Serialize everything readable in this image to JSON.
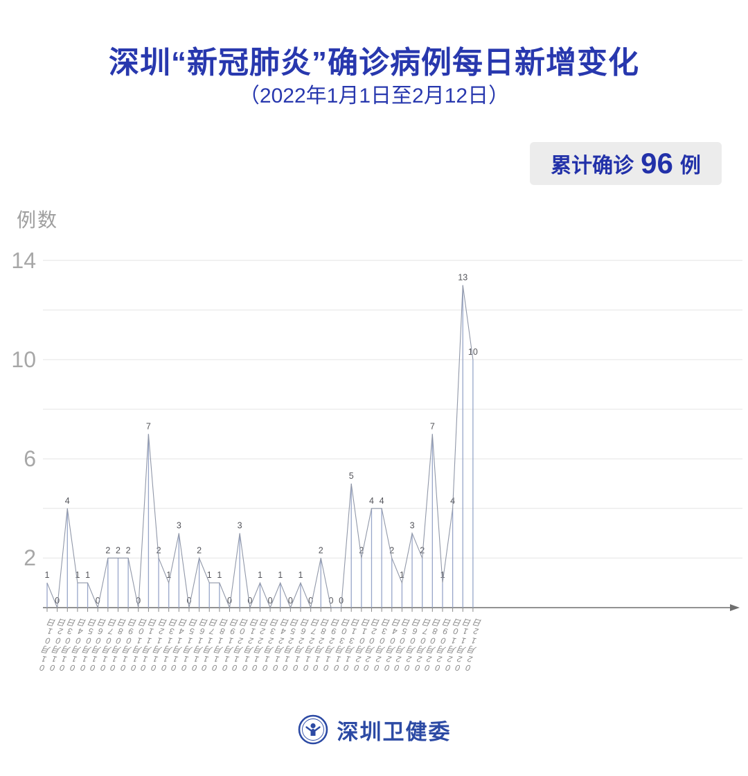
{
  "title": "深圳“新冠肺炎”确诊病例每日新增变化",
  "subtitle": "（2022年1月1日至2月12日）",
  "badge": {
    "prefix": "累计确诊",
    "count": "96",
    "suffix": "例"
  },
  "y_axis_unit": "例数",
  "footer": {
    "org": "深圳卫健委"
  },
  "colors": {
    "title_blue": "#2838ae",
    "badge_bg": "#ececec",
    "badge_text": "#2231a9",
    "footer_blue": "#2c4aa4",
    "gridline": "#e4e4e4",
    "axis": "#6f6f6f",
    "stem": "#97a5c9",
    "line": "#9097a8",
    "point_label": "#53545a",
    "tick": "#8a8a8a",
    "y_label": "#a7a7a7",
    "x_label": "#8a8a8a"
  },
  "chart_data": {
    "type": "line",
    "title": "深圳“新冠肺炎”确诊病例每日新增变化",
    "subtitle": "（2022年1月1日至2月12日）",
    "ylabel": "例数",
    "xlabel": "",
    "ylim": [
      0,
      14
    ],
    "gridlines": "horizontal, every 2 units from 2 to 14",
    "y_ticks_labeled": [
      14,
      10,
      6,
      2
    ],
    "legend": "none",
    "total_label": "累计确诊 96 例",
    "x": [
      "01月01日",
      "01月02日",
      "01月03日",
      "01月04日",
      "01月05日",
      "01月06日",
      "01月07日",
      "01月08日",
      "01月09日",
      "01月10日",
      "01月11日",
      "01月12日",
      "01月13日",
      "01月14日",
      "01月15日",
      "01月16日",
      "01月17日",
      "01月18日",
      "01月19日",
      "01月20日",
      "01月21日",
      "01月22日",
      "01月23日",
      "01月24日",
      "01月25日",
      "01月26日",
      "01月27日",
      "01月28日",
      "01月29日",
      "01月30日",
      "01月31日",
      "02月01日",
      "02月02日",
      "02月03日",
      "02月04日",
      "02月05日",
      "02月06日",
      "02月07日",
      "02月08日",
      "02月09日",
      "02月10日",
      "02月11日",
      "02月12日"
    ],
    "values": [
      1,
      0,
      4,
      1,
      1,
      0,
      2,
      2,
      2,
      0,
      7,
      2,
      1,
      3,
      0,
      2,
      1,
      1,
      0,
      3,
      0,
      1,
      0,
      1,
      0,
      1,
      0,
      2,
      0,
      0,
      5,
      2,
      4,
      4,
      2,
      1,
      3,
      2,
      7,
      1,
      4,
      13,
      10
    ]
  }
}
